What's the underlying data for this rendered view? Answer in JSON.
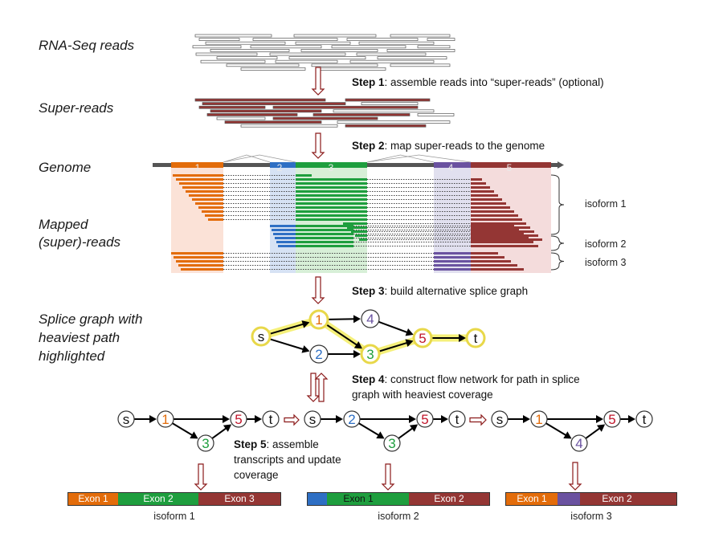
{
  "labels": {
    "rnaseq": "RNA-Seq reads",
    "superreads": "Super-reads",
    "genome": "Genome",
    "mapped1": "Mapped",
    "mapped2": "(super)-reads",
    "splice1": "Splice graph with",
    "splice2": "heaviest path",
    "splice3": "highlighted"
  },
  "steps": [
    {
      "bold": "Step 1",
      "text": ": assemble reads into “super-reads” (optional)"
    },
    {
      "bold": "Step 2",
      "text": ": map super-reads to the genome"
    },
    {
      "bold": "Step 3",
      "text": ": build alternative splice graph"
    },
    {
      "bold": "Step 4",
      "text": ": construct flow network for path in splice",
      "text2": "graph with heaviest coverage"
    },
    {
      "bold": "Step 5",
      "text": ":  assemble",
      "text2": "transcripts and update",
      "text3": "coverage"
    }
  ],
  "exon_numbers": [
    "1",
    "2",
    "3",
    "4",
    "5"
  ],
  "isoform_side_labels": [
    "isoform 1",
    "isoform 2",
    "isoform 3"
  ],
  "graph_nodes": [
    "s",
    "1",
    "2",
    "3",
    "4",
    "5",
    "t"
  ],
  "colors": {
    "exon1": "#e36c0a",
    "exon2": "#2e6fc4",
    "exon3": "#1e9e3e",
    "exon4": "#6a52a0",
    "exon5": "#943634",
    "arrow": "#8b1a1a",
    "highlight": "#f5f07a"
  },
  "isoform_bars": [
    {
      "caption": "isoform 1",
      "exons": [
        "Exon 1",
        "Exon 2",
        "Exon 3"
      ]
    },
    {
      "caption": "isoform 2",
      "exons": [
        "Exon 1",
        "Exon 2"
      ]
    },
    {
      "caption": "isoform 3",
      "exons": [
        "Exon 1",
        "Exon 2"
      ]
    }
  ]
}
